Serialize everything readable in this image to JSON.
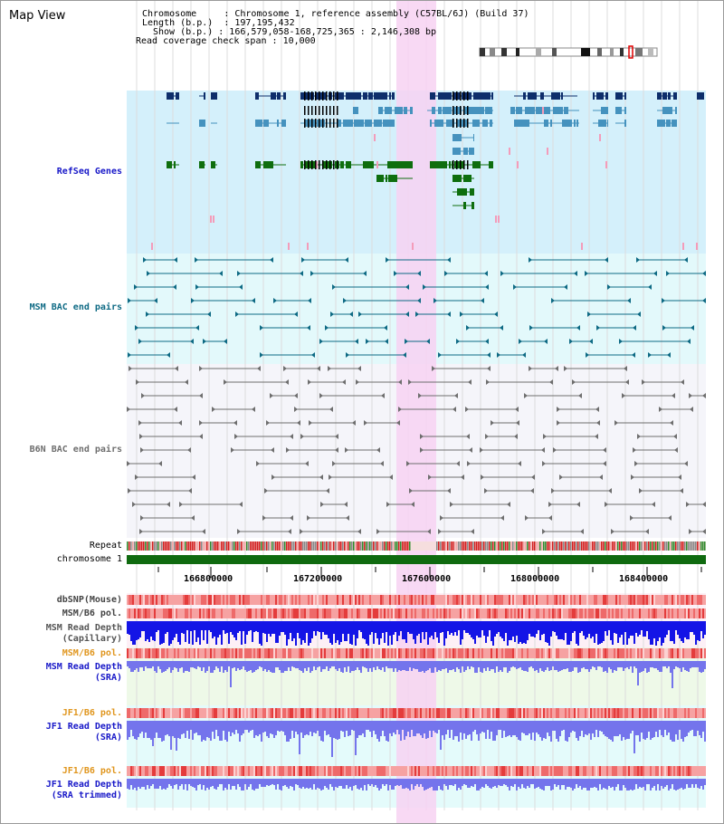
{
  "title": "Map View",
  "info": {
    "chromosome_label": "Chromosome",
    "chromosome_value": "Chromosome 1, reference assembly (C57BL/6J) (Build 37)",
    "length_label": "Length (b.p.)",
    "length_value": "197,195,432",
    "show_label": "Show (b.p.)",
    "show_value": "166,579,058-168,725,365 : 2,146,308 bp",
    "coverage_label": "Read coverage check span",
    "coverage_value": "10,000"
  },
  "tracks": {
    "refseq": "RefSeq Genes",
    "msm_bac": "MSM BAC end pairs",
    "b6n_bac": "B6N BAC end pairs",
    "repeat": "Repeat",
    "chromosome": "chromosome 1",
    "dbsnp": "dbSNP(Mouse)",
    "msm_b6_pol_1": "MSM/B6 pol.",
    "msm_read_depth_cap": "MSM Read Depth\n(Capillary)",
    "msm_b6_pol_2": "MSM/B6 pol.",
    "msm_read_depth_sra": "MSM Read Depth\n(SRA)",
    "jf1_b6_pol_1": "JF1/B6 pol.",
    "jf1_read_depth_sra": "JF1 Read Depth\n(SRA)",
    "jf1_b6_pol_2": "JF1/B6 pol.",
    "jf1_read_depth_trim": "JF1 Read Depth\n(SRA trimmed)"
  },
  "axis": {
    "ticks": [
      "166800000",
      "167200000",
      "167600000",
      "168000000",
      "168400000"
    ]
  },
  "colors": {
    "refseq_bg": "#d4f0fb",
    "msm_bg": "#e3f9fb",
    "b6n_bg": "#f5f5fa",
    "highlight": "#f7d2f2",
    "navy": "#0e2e6b",
    "steel": "#4592be",
    "green": "#0e6e0e",
    "teal": "#0e6a84",
    "grey": "#6e6e6e",
    "read_blue": "#1414e6",
    "read_light": "#7474ec",
    "chromosome_green": "#0f6a0f"
  }
}
